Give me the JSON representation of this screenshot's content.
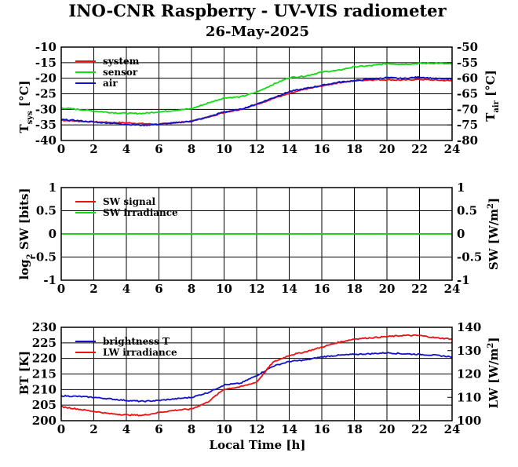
{
  "header": {
    "title": "INO-CNR Raspberry - UV-VIS radiometer",
    "date": "26-May-2025"
  },
  "colors": {
    "red": "#ee1111",
    "green": "#11dd11",
    "blue": "#1111cc"
  },
  "chart_data": [
    {
      "type": "line",
      "name_id": "temperature",
      "x": [
        0,
        1,
        2,
        3,
        4,
        5,
        6,
        7,
        8,
        9,
        10,
        11,
        12,
        13,
        14,
        15,
        16,
        17,
        18,
        19,
        20,
        21,
        22,
        23,
        24
      ],
      "xlim": [
        0,
        24
      ],
      "ylim": [
        -40,
        -10
      ],
      "y2lim": [
        -80,
        -50
      ],
      "yticks": [
        "-10",
        "-15",
        "-20",
        "-25",
        "-30",
        "-35",
        "-40"
      ],
      "y2ticks": [
        "-50",
        "-55",
        "-60",
        "-65",
        "-70",
        "-75",
        "-80"
      ],
      "xticks": [
        "0",
        "2",
        "4",
        "6",
        "8",
        "10",
        "12",
        "14",
        "16",
        "18",
        "20",
        "22",
        "24"
      ],
      "ylabel_main": "T",
      "ylabel_sub": "sys",
      "ylabel_unit": " [°C]",
      "y2label_main": "T",
      "y2label_sub": "air",
      "y2label_unit": " [°C]",
      "legend": [
        "system",
        "sensor",
        "air"
      ],
      "series": [
        {
          "name": "system",
          "axis": "left",
          "color": "red",
          "values": [
            -33.5,
            -33.8,
            -34.0,
            -34.2,
            -34.3,
            -34.6,
            -34.8,
            -34.3,
            -33.8,
            -32.5,
            -31.0,
            -30.0,
            -28.5,
            -26.5,
            -25.0,
            -23.5,
            -22.5,
            -21.5,
            -20.8,
            -20.5,
            -20.5,
            -20.6,
            -20.4,
            -20.6,
            -20.8
          ]
        },
        {
          "name": "sensor",
          "axis": "left",
          "color": "green",
          "values": [
            -29.5,
            -30.0,
            -30.5,
            -31.0,
            -31.3,
            -31.3,
            -30.8,
            -30.3,
            -29.8,
            -28.0,
            -26.3,
            -26.0,
            -24.5,
            -22.0,
            -19.8,
            -19.3,
            -18.0,
            -17.5,
            -16.3,
            -16.0,
            -15.3,
            -15.5,
            -15.3,
            -15.2,
            -15.5
          ]
        },
        {
          "name": "air",
          "axis": "right",
          "color": "blue",
          "values": [
            -73.3,
            -73.6,
            -74.1,
            -74.4,
            -74.8,
            -75.1,
            -74.8,
            -74.3,
            -73.8,
            -72.5,
            -70.8,
            -70.0,
            -68.3,
            -66.3,
            -64.3,
            -63.3,
            -62.3,
            -61.3,
            -60.8,
            -60.3,
            -59.8,
            -60.1,
            -59.6,
            -60.1,
            -60.3
          ]
        }
      ]
    },
    {
      "type": "line",
      "name_id": "shortwave",
      "x": [
        0,
        24
      ],
      "xlim": [
        0,
        24
      ],
      "ylim": [
        -1,
        1
      ],
      "y2lim": [
        -1,
        1
      ],
      "yticks": [
        "1",
        "0.5",
        "0",
        "-0.5",
        "-1"
      ],
      "y2ticks": [
        "1",
        "0.5",
        "0",
        "-0.5",
        "-1"
      ],
      "xticks": [
        "0",
        "2",
        "4",
        "6",
        "8",
        "10",
        "12",
        "14",
        "16",
        "18",
        "20",
        "22",
        "24"
      ],
      "ylabel_pre": "log",
      "ylabel_sub": "2",
      "ylabel_post": " SW [bits]",
      "y2label_pre": "SW [W/m",
      "y2label_sup": "2",
      "y2label_post": "]",
      "legend": [
        "SW signal",
        "SW irradiance"
      ],
      "series": [
        {
          "name": "SW signal",
          "axis": "left",
          "color": "red",
          "values": [
            0,
            0
          ]
        },
        {
          "name": "SW irradiance",
          "axis": "right",
          "color": "green",
          "values": [
            0,
            0
          ]
        }
      ]
    },
    {
      "type": "line",
      "name_id": "longwave",
      "x": [
        0,
        1,
        2,
        3,
        4,
        5,
        6,
        7,
        8,
        9,
        10,
        11,
        12,
        13,
        14,
        15,
        16,
        17,
        18,
        19,
        20,
        21,
        22,
        23,
        24
      ],
      "xlim": [
        0,
        24
      ],
      "ylim": [
        200,
        230
      ],
      "y2lim": [
        100,
        140
      ],
      "yticks": [
        "230",
        "225",
        "220",
        "215",
        "210",
        "205",
        "200"
      ],
      "y2ticks": [
        "140",
        "130",
        "120",
        "110",
        "100"
      ],
      "xticks": [
        "0",
        "2",
        "4",
        "6",
        "8",
        "10",
        "12",
        "14",
        "16",
        "18",
        "20",
        "22",
        "24"
      ],
      "xlabel": "Local Time [h]",
      "ylabel": "BT [K]",
      "y2label_pre": "LW [W/m",
      "y2label_sup": "2",
      "y2label_post": "]",
      "legend": [
        "brightness T",
        "LW irradiance"
      ],
      "series": [
        {
          "name": "brightness T",
          "axis": "left",
          "color": "blue",
          "values": [
            208.0,
            207.8,
            207.5,
            207.0,
            206.5,
            206.2,
            206.5,
            207.0,
            207.5,
            209.0,
            211.5,
            212.0,
            214.5,
            217.5,
            219.0,
            219.5,
            220.5,
            221.0,
            221.3,
            221.5,
            221.8,
            221.5,
            221.3,
            221.0,
            220.5
          ]
        },
        {
          "name": "LW irradiance",
          "axis": "right",
          "color": "red",
          "values": [
            106.0,
            105.0,
            104.0,
            103.0,
            102.5,
            102.3,
            103.5,
            104.5,
            105.0,
            108.0,
            113.5,
            114.5,
            116.5,
            125.0,
            128.0,
            129.5,
            131.5,
            133.5,
            135.0,
            135.5,
            136.0,
            136.5,
            136.5,
            135.5,
            135.0
          ]
        }
      ]
    }
  ]
}
